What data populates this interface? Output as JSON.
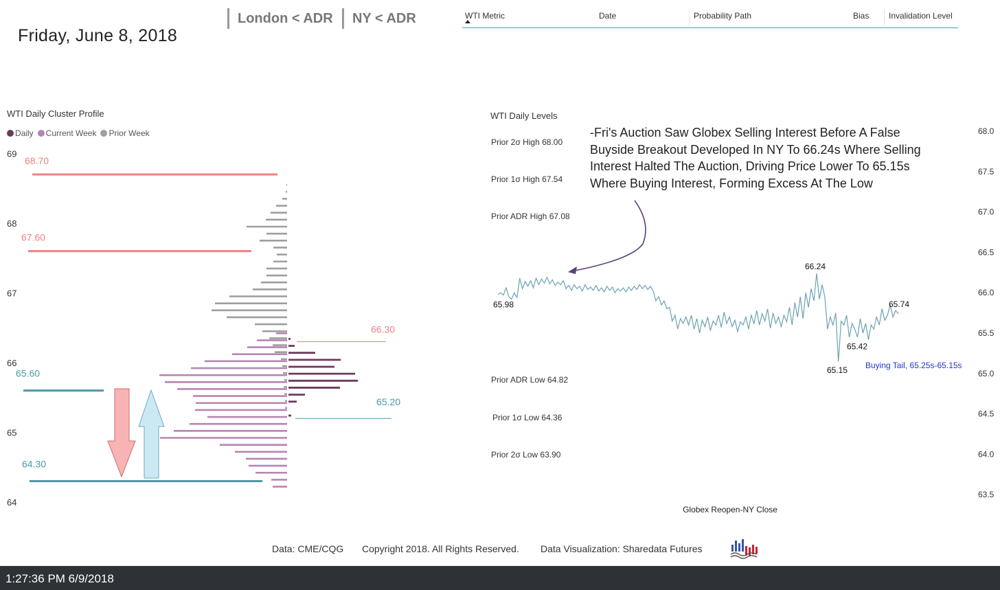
{
  "header": {
    "date": "Friday, June 8, 2018",
    "buttons": [
      {
        "label": "London < ADR"
      },
      {
        "label": "NY < ADR"
      }
    ],
    "table_columns": [
      "WTI Metric",
      "Date",
      "Probability Path",
      "Bias",
      "Invalidation Level"
    ]
  },
  "cluster_profile": {
    "title": "WTI Daily Cluster Profile",
    "legend": [
      {
        "label": "Daily",
        "color": "#6b3a5c"
      },
      {
        "label": "Current Week",
        "color": "#b784b2"
      },
      {
        "label": "Prior Week",
        "color": "#9e9e9e"
      }
    ]
  },
  "levels_panel": {
    "title": "WTI Daily Levels",
    "levels_upper": [
      {
        "label": "Prior 2σ High 68.00",
        "color": "#b84c4c"
      },
      {
        "label": "Prior 1σ High 67.54",
        "color": "#b84c4c"
      },
      {
        "label": "Prior ADR High 67.08",
        "color": "#b84c4c"
      }
    ],
    "levels_lower": [
      {
        "label": "Prior ADR Low 64.82",
        "color": "#5a8ea0"
      },
      {
        "label": "Prior 1σ Low 64.36",
        "color": "#5a8ea0"
      },
      {
        "label": "Prior 2σ Low 63.90",
        "color": "#5a8ea0"
      }
    ],
    "annotation": "-Fri's Auction Saw Globex Selling Interest Before A False Buyside Breakout Developed In NY To 66.24s Where Selling Interest Halted The Auction, Driving Price Lower To 65.15s Where Buying Interest, Forming Excess At The Low",
    "xlabel": "Globex Reopen-NY Close",
    "buying_tail": "Buying Tail, 65.25s-65.15s"
  },
  "chart_data": [
    {
      "type": "bar",
      "orientation": "horizontal",
      "title": "WTI Daily Cluster Profile",
      "y_ticks": [
        "69",
        "68",
        "67",
        "66",
        "65",
        "64"
      ],
      "ylim": [
        64,
        69
      ],
      "price_bins": [
        68.6,
        68.5,
        68.4,
        68.3,
        68.2,
        68.1,
        68.0,
        67.9,
        67.8,
        67.7,
        67.6,
        67.5,
        67.4,
        67.3,
        67.2,
        67.1,
        67.0,
        66.9,
        66.8,
        66.7,
        66.6,
        66.5,
        66.4,
        66.3,
        66.2,
        66.1,
        66.0,
        65.9,
        65.8,
        65.7,
        65.6,
        65.5,
        65.4,
        65.3,
        65.2,
        65.1,
        65.0,
        64.9,
        64.8,
        64.7,
        64.6,
        64.5,
        64.4,
        64.3
      ],
      "series": [
        {
          "name": "Prior Week",
          "values": [
            1,
            2,
            7,
            16,
            24,
            31,
            59,
            30,
            40,
            20,
            15,
            20,
            30,
            30,
            38,
            50,
            84,
            105,
            110,
            88,
            47,
            36,
            26,
            21,
            18,
            9,
            7,
            6,
            4,
            5,
            4,
            3,
            3,
            0,
            0,
            0,
            0,
            0,
            0,
            0,
            0,
            0,
            0,
            0
          ]
        },
        {
          "name": "Current Week",
          "values": [
            0,
            0,
            0,
            0,
            0,
            0,
            0,
            0,
            0,
            0,
            0,
            0,
            0,
            0,
            0,
            0,
            0,
            0,
            0,
            0,
            0,
            16,
            44,
            58,
            80,
            120,
            140,
            186,
            178,
            160,
            137,
            133,
            134,
            116,
            142,
            165,
            185,
            98,
            76,
            60,
            56,
            46,
            23,
            21
          ]
        },
        {
          "name": "Daily",
          "values": [
            0,
            0,
            0,
            0,
            0,
            0,
            0,
            0,
            0,
            0,
            0,
            0,
            0,
            0,
            0,
            0,
            0,
            0,
            0,
            0,
            0,
            0,
            3,
            9,
            39,
            76,
            67,
            97,
            101,
            75,
            24,
            12,
            0,
            4,
            0,
            0,
            0,
            0,
            0,
            0,
            0,
            0,
            0,
            0
          ]
        }
      ],
      "reference_lines": [
        {
          "label": "68.70",
          "value": 68.7,
          "color": "#f08080"
        },
        {
          "label": "67.60",
          "value": 67.6,
          "color": "#f08080"
        },
        {
          "label": "66.30",
          "value": 66.3,
          "color": "#f08080"
        },
        {
          "label": "65.60",
          "value": 65.6,
          "color": "#4a9aa8"
        },
        {
          "label": "65.20",
          "value": 65.2,
          "color": "#4a9aa8"
        },
        {
          "label": "64.30",
          "value": 64.3,
          "color": "#4a9aa8"
        }
      ]
    },
    {
      "type": "line",
      "title": "WTI Daily Levels",
      "xlabel": "Globex Reopen-NY Close",
      "y_ticks": [
        "68.0",
        "67.5",
        "67.0",
        "66.5",
        "66.0",
        "65.5",
        "65.0",
        "64.5",
        "64.0",
        "63.5"
      ],
      "ylim": [
        63.5,
        68.0
      ],
      "values": [
        65.98,
        66.0,
        65.97,
        66.06,
        65.95,
        65.92,
        66.0,
        65.94,
        66.18,
        66.05,
        66.14,
        66.08,
        66.15,
        66.06,
        66.18,
        66.1,
        66.17,
        66.12,
        66.19,
        66.11,
        66.16,
        66.09,
        66.13,
        66.1,
        66.15,
        66.05,
        66.09,
        66.03,
        66.1,
        66.05,
        66.08,
        66.02,
        66.1,
        66.04,
        66.07,
        66.03,
        66.09,
        66.02,
        66.06,
        66.01,
        66.08,
        66.03,
        66.07,
        66.0,
        66.05,
        66.02,
        66.06,
        66.01,
        66.07,
        66.03,
        66.08,
        66.04,
        66.1,
        66.05,
        66.09,
        66.04,
        66.08,
        66.02,
        65.9,
        65.95,
        65.85,
        65.9,
        65.8,
        65.82,
        65.65,
        65.72,
        65.55,
        65.68,
        65.62,
        65.7,
        65.6,
        65.72,
        65.55,
        65.68,
        65.5,
        65.66,
        65.58,
        65.7,
        65.53,
        65.65,
        65.6,
        65.72,
        65.57,
        65.76,
        65.62,
        65.7,
        65.58,
        65.66,
        65.52,
        65.64,
        65.6,
        65.7,
        65.55,
        65.72,
        65.62,
        65.78,
        65.6,
        65.74,
        65.65,
        65.8,
        65.56,
        65.75,
        65.62,
        65.7,
        65.58,
        65.72,
        65.64,
        65.82,
        65.6,
        65.88,
        65.7,
        65.95,
        65.68,
        66.0,
        65.82,
        66.05,
        65.9,
        66.24,
        65.92,
        66.1,
        65.95,
        65.55,
        65.7,
        65.6,
        65.75,
        65.15,
        65.65,
        65.6,
        65.72,
        65.45,
        65.62,
        65.55,
        65.45,
        65.68,
        65.5,
        65.62,
        65.42,
        65.6,
        65.55,
        65.7,
        65.6,
        65.8,
        65.66,
        65.72,
        65.85,
        65.7,
        65.78,
        65.74
      ],
      "annotations": [
        {
          "label": "65.98",
          "value": 65.98
        },
        {
          "label": "66.24",
          "value": 66.24
        },
        {
          "label": "65.15",
          "value": 65.15
        },
        {
          "label": "65.42",
          "value": 65.42
        },
        {
          "label": "65.74",
          "value": 65.74
        }
      ]
    }
  ],
  "footer": {
    "source": "Data: CME/CQG",
    "copyright": "Copyright 2018. All Rights Reserved.",
    "credit": "Data Visualization: Sharedata Futures"
  },
  "statusbar": {
    "timestamp": "1:27:36 PM 6/9/2018"
  }
}
